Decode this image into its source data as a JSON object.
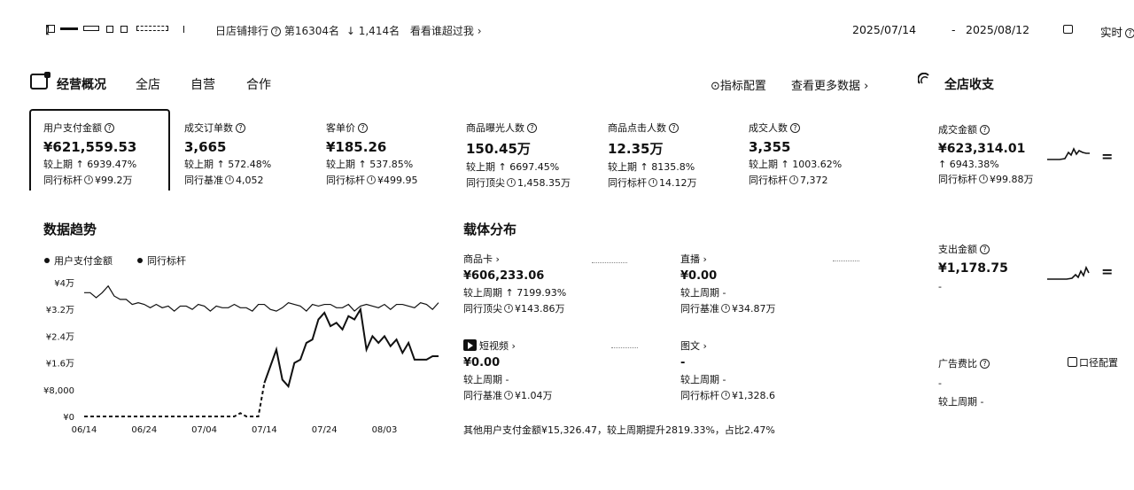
{
  "topbar": {
    "shop_name": "【",
    "rank_text": "日店铺排行",
    "rank_pos": "第16304名",
    "rank_change": "↓ 1,414名",
    "see_who_link": "看看谁超过我",
    "date_start": "2025/07/14",
    "date_sep": "-",
    "date_end": "2025/08/12",
    "realtime": "实时"
  },
  "tabs": {
    "overview": "经营概况",
    "all": "全店",
    "self": "自营",
    "coop": "合作",
    "indicator_config": "指标配置",
    "more_data": "查看更多数据",
    "shop_income": "全店收支"
  },
  "metrics": [
    {
      "label": "用户支付金额",
      "value": "¥621,559.53",
      "l2_label": "较上期",
      "l2_value": "↑ 6939.47%",
      "l3_label": "同行标杆",
      "l3_value": "¥99.2万"
    },
    {
      "label": "成交订单数",
      "value": "3,665",
      "l2_label": "较上期",
      "l2_value": "↑ 572.48%",
      "l3_label": "同行基准",
      "l3_value": "4,052"
    },
    {
      "label": "客单价",
      "value": "¥185.26",
      "l2_label": "较上期",
      "l2_value": "↑ 537.85%",
      "l3_label": "同行标杆",
      "l3_value": "¥499.95"
    },
    {
      "label": "商品曝光人数",
      "value": "150.45万",
      "l2_label": "较上期",
      "l2_value": "↑ 6697.45%",
      "l3_label": "同行顶尖",
      "l3_value": "1,458.35万"
    },
    {
      "label": "商品点击人数",
      "value": "12.35万",
      "l2_label": "较上期",
      "l2_value": "↑ 8135.8%",
      "l3_label": "同行标杆",
      "l3_value": "14.12万"
    },
    {
      "label": "成交人数",
      "value": "3,355",
      "l2_label": "较上期",
      "l2_value": "↑ 1003.62%",
      "l3_label": "同行标杆",
      "l3_value": "7,372"
    }
  ],
  "trend": {
    "title": "数据趋势",
    "legend_a": "用户支付金额",
    "legend_b": "同行标杆"
  },
  "chart_data": {
    "type": "line",
    "title": "",
    "x_ticks": [
      "06/14",
      "06/24",
      "07/04",
      "07/14",
      "07/24",
      "08/03"
    ],
    "y_ticks": [
      "¥0",
      "¥8,000",
      "¥1.6万",
      "¥2.4万",
      "¥3.2万",
      "¥4万"
    ],
    "ylim": [
      0,
      40000
    ],
    "x": [
      "06/14",
      "06/15",
      "06/16",
      "06/17",
      "06/18",
      "06/19",
      "06/20",
      "06/21",
      "06/22",
      "06/23",
      "06/24",
      "06/25",
      "06/26",
      "06/27",
      "06/28",
      "06/29",
      "06/30",
      "07/01",
      "07/02",
      "07/03",
      "07/04",
      "07/05",
      "07/06",
      "07/07",
      "07/08",
      "07/09",
      "07/10",
      "07/11",
      "07/12",
      "07/13",
      "07/14",
      "07/15",
      "07/16",
      "07/17",
      "07/18",
      "07/19",
      "07/20",
      "07/21",
      "07/22",
      "07/23",
      "07/24",
      "07/25",
      "07/26",
      "07/27",
      "07/28",
      "07/29",
      "07/30",
      "07/31",
      "08/01",
      "08/02",
      "08/03",
      "08/04",
      "08/05",
      "08/06",
      "08/07",
      "08/08",
      "08/09",
      "08/10",
      "08/11",
      "08/12"
    ],
    "series": [
      {
        "name": "用户支付金额",
        "style": "solid-with-dashed-start",
        "values": [
          0,
          0,
          0,
          0,
          0,
          0,
          0,
          0,
          0,
          0,
          0,
          0,
          0,
          0,
          0,
          0,
          0,
          0,
          0,
          0,
          0,
          0,
          0,
          0,
          0,
          0,
          1000,
          0,
          0,
          0,
          10000,
          15000,
          20000,
          11000,
          9000,
          16000,
          17000,
          22000,
          23000,
          29000,
          31000,
          27000,
          28000,
          26000,
          30000,
          29000,
          32000,
          20000,
          24000,
          22000,
          24000,
          21000,
          23000,
          19000,
          22000,
          17000,
          17000,
          17000,
          18000,
          18000
        ]
      },
      {
        "name": "同行标杆",
        "style": "thin",
        "values": [
          37000,
          37000,
          35500,
          37000,
          39000,
          36000,
          35000,
          35000,
          33500,
          34000,
          33500,
          32500,
          33500,
          32500,
          33000,
          31500,
          33000,
          33000,
          32000,
          33500,
          33000,
          31500,
          33000,
          32500,
          32500,
          33500,
          32500,
          32500,
          31500,
          33500,
          33500,
          32000,
          31500,
          32500,
          34000,
          33500,
          33000,
          31500,
          33500,
          33000,
          33500,
          33500,
          32500,
          32500,
          33500,
          31500,
          33000,
          33500,
          33000,
          32500,
          33500,
          32000,
          33500,
          33500,
          33000,
          32500,
          34000,
          33500,
          32000,
          34000
        ]
      }
    ]
  },
  "distribution": {
    "title": "载体分布",
    "items": [
      {
        "name": "商品卡",
        "value": "¥606,233.06",
        "l2_label": "较上周期",
        "l2_value": "↑ 7199.93%",
        "l3_label": "同行顶尖",
        "l3_value": "¥143.86万"
      },
      {
        "name": "直播",
        "value": "¥0.00",
        "l2_label": "较上周期",
        "l2_value": "-",
        "l3_label": "同行基准",
        "l3_value": "¥34.87万"
      },
      {
        "name": "短视频",
        "value": "¥0.00",
        "l2_label": "较上周期",
        "l2_value": "-",
        "l3_label": "同行基准",
        "l3_value": "¥1.04万"
      },
      {
        "name": "图文",
        "value": "-",
        "l2_label": "较上周期",
        "l2_value": "-",
        "l3_label": "同行标杆",
        "l3_value": "¥1,328.6"
      }
    ],
    "footnote": "其他用户支付金额¥15,326.47，较上周期提升2819.33%，占比2.47%"
  },
  "income": {
    "deal_label": "成交金额",
    "deal_value": "¥623,314.01",
    "deal_change": "↑ 6943.38%",
    "deal_bench_label": "同行标杆",
    "deal_bench_value": "¥99.88万",
    "spend_label": "支出金额",
    "spend_value": "¥1,178.75",
    "spend_sub": "-",
    "ad_label": "广告费比",
    "ad_config": "口径配置",
    "ad_value": "-",
    "ad_change_label": "较上周期",
    "ad_change_value": "-",
    "eq_icon": "="
  }
}
